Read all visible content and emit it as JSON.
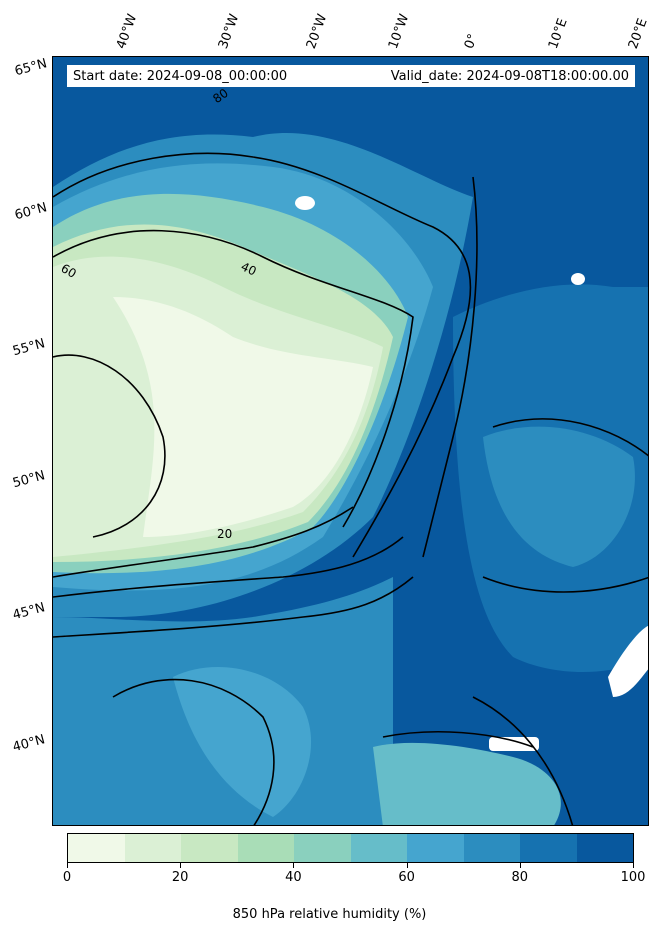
{
  "header": {
    "start_date": "Start date: 2024-09-08_00:00:00",
    "valid_date": "Valid_date: 2024-09-08T18:00:00.00"
  },
  "latitude_labels": [
    "65°N",
    "60°N",
    "55°N",
    "50°N",
    "45°N",
    "40°N"
  ],
  "longitude_labels": [
    "40°W",
    "30°W",
    "20°W",
    "10°W",
    "0°",
    "10°E",
    "20°E"
  ],
  "contour_labels": [
    "80",
    "60",
    "40",
    "20"
  ],
  "colorbar": {
    "title": "850 hPa relative humidity (%)",
    "tick_labels": [
      "0",
      "20",
      "40",
      "60",
      "80",
      "100"
    ],
    "levels": [
      0,
      10,
      20,
      30,
      40,
      50,
      60,
      70,
      80,
      90,
      100
    ],
    "colors": [
      "#f0f9e8",
      "#dbf0d5",
      "#c8e8c2",
      "#a9ddb7",
      "#8ad0be",
      "#66bdc9",
      "#45a5cf",
      "#2c8dbf",
      "#1672b0",
      "#08589e"
    ]
  },
  "map": {
    "variable": "relative humidity",
    "units": "%",
    "pressure_level_hPa": 850,
    "lat_range": [
      37,
      65
    ],
    "lon_range": [
      -45,
      25
    ],
    "dry_region": "North Atlantic west of Ireland, values below 20%",
    "missing_data_color": "#ffffff"
  }
}
